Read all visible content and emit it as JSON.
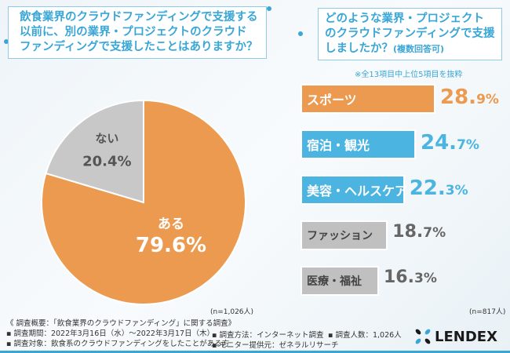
{
  "q1": {
    "text": "飲食業界のクラウドファンディングで支援する以前に、別の業界・プロジェクトのクラウドファンディングで支援したことはありますか？"
  },
  "q2": {
    "text": "どのような業界・プロジェクトのクラウドファンディングで支援しましたか？",
    "sub": "(複数回答可)",
    "note": "※全13項目中上位5項目を抜粋"
  },
  "chart_data": [
    {
      "type": "pie",
      "labels": [
        "ある",
        "ない"
      ],
      "values": [
        79.6,
        20.4
      ],
      "value_labels": [
        "79.6%",
        "20.4%"
      ],
      "colors": [
        "#ec9a4f",
        "#c8c8c8"
      ],
      "n": "(n=1,026人)"
    },
    {
      "type": "bar",
      "orientation": "horizontal",
      "categories": [
        "スポーツ",
        "宿泊・観光",
        "美容・ヘルスケア",
        "ファッション",
        "医療・福祉"
      ],
      "values": [
        28.9,
        24.7,
        22.3,
        18.7,
        16.3
      ],
      "value_int": [
        "28.",
        "24.",
        "22.",
        "18.",
        "16."
      ],
      "value_dec": [
        "9%",
        "7%",
        "3%",
        "7%",
        "3%"
      ],
      "colors": [
        "#ec9a4f",
        "#4cb4e0",
        "#4cb4e0",
        "#c0c0c0",
        "#c0c0c0"
      ],
      "n": "(n=817人)"
    }
  ],
  "footer": {
    "title": "《 調査概要：「飲食業界のクラウドファンディング」に関する調査》",
    "period": "▪ 調査期間：2022年3月16日（水）～2022年3月17日（木）",
    "target": "▪ 調査対象：飲食系のクラウドファンディングをしたことがある方",
    "method": "▪ 調査方法：インターネット調査",
    "provider": "▪ モニター提供元：ゼネラルリサーチ",
    "count": "▪ 調査人数：1,026人"
  },
  "logo": "LENDEX"
}
